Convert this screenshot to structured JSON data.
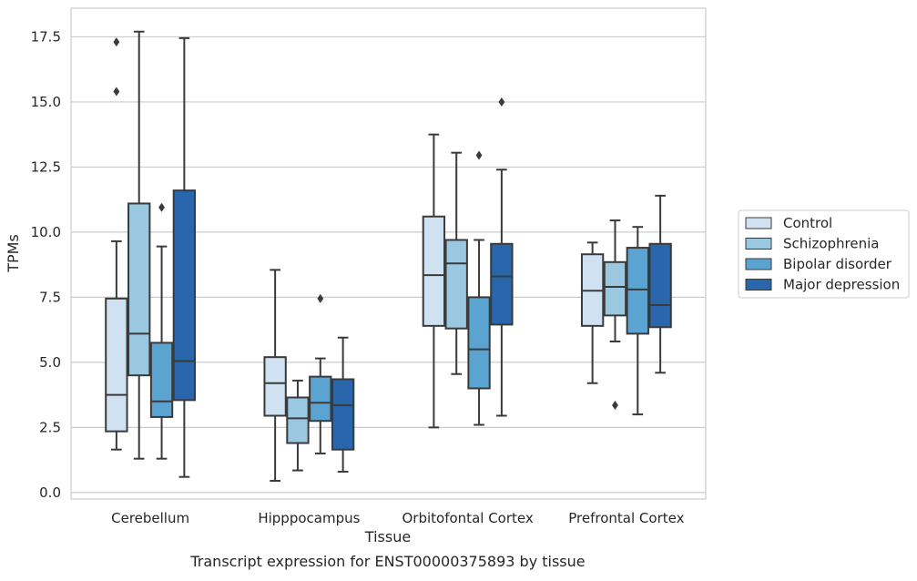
{
  "chart_data": {
    "type": "box",
    "title": "",
    "caption": "Transcript expression for ENST00000375893 by tissue",
    "xlabel": "Tissue",
    "ylabel": "TPMs",
    "ylim": [
      -0.25,
      18.6
    ],
    "yticks": [
      "0.0",
      "2.5",
      "5.0",
      "7.5",
      "10.0",
      "12.5",
      "15.0",
      "17.5"
    ],
    "ytick_values": [
      0,
      2.5,
      5,
      7.5,
      10,
      12.5,
      15,
      17.5
    ],
    "grid": "horizontal",
    "legend_position": "right",
    "categories": [
      "Cerebellum",
      "Hipppocampus",
      "Orbitofontal Cortex",
      "Prefrontal Cortex"
    ],
    "series": [
      {
        "name": "Control",
        "color": "#d0e1f2",
        "boxes": [
          {
            "whislo": 1.65,
            "q1": 2.35,
            "med": 3.75,
            "q3": 7.45,
            "whishi": 9.65,
            "fliers": [
              17.3,
              15.4
            ]
          },
          {
            "whislo": 0.45,
            "q1": 2.95,
            "med": 4.2,
            "q3": 5.2,
            "whishi": 8.55,
            "fliers": []
          },
          {
            "whislo": 2.5,
            "q1": 6.4,
            "med": 8.35,
            "q3": 10.6,
            "whishi": 13.75,
            "fliers": []
          },
          {
            "whislo": 4.2,
            "q1": 6.4,
            "med": 7.75,
            "q3": 9.15,
            "whishi": 9.6,
            "fliers": []
          }
        ]
      },
      {
        "name": "Schizophrenia",
        "color": "#9ac8e0",
        "boxes": [
          {
            "whislo": 1.3,
            "q1": 4.5,
            "med": 6.1,
            "q3": 11.1,
            "whishi": 17.7,
            "fliers": []
          },
          {
            "whislo": 0.85,
            "q1": 1.9,
            "med": 2.85,
            "q3": 3.65,
            "whishi": 4.3,
            "fliers": []
          },
          {
            "whislo": 4.55,
            "q1": 6.3,
            "med": 8.8,
            "q3": 9.7,
            "whishi": 13.05,
            "fliers": []
          },
          {
            "whislo": 5.8,
            "q1": 6.8,
            "med": 7.9,
            "q3": 8.85,
            "whishi": 10.45,
            "fliers": [
              3.35
            ]
          }
        ]
      },
      {
        "name": "Bipolar disorder",
        "color": "#5ba3d0",
        "boxes": [
          {
            "whislo": 1.3,
            "q1": 2.9,
            "med": 3.5,
            "q3": 5.75,
            "whishi": 9.45,
            "fliers": [
              10.95
            ]
          },
          {
            "whislo": 1.5,
            "q1": 2.75,
            "med": 3.45,
            "q3": 4.45,
            "whishi": 5.15,
            "fliers": [
              7.45
            ]
          },
          {
            "whislo": 2.6,
            "q1": 4.0,
            "med": 5.5,
            "q3": 7.5,
            "whishi": 9.7,
            "fliers": [
              12.95
            ]
          },
          {
            "whislo": 3.0,
            "q1": 6.1,
            "med": 7.8,
            "q3": 9.4,
            "whishi": 10.2,
            "fliers": []
          }
        ]
      },
      {
        "name": "Major depression",
        "color": "#2966ac",
        "boxes": [
          {
            "whislo": 0.6,
            "q1": 3.55,
            "med": 5.05,
            "q3": 11.6,
            "whishi": 17.45,
            "fliers": []
          },
          {
            "whislo": 0.8,
            "q1": 1.65,
            "med": 3.35,
            "q3": 4.35,
            "whishi": 5.95,
            "fliers": []
          },
          {
            "whislo": 2.95,
            "q1": 6.45,
            "med": 8.3,
            "q3": 9.55,
            "whishi": 12.4,
            "fliers": [
              15.0
            ]
          },
          {
            "whislo": 4.6,
            "q1": 6.35,
            "med": 7.2,
            "q3": 9.55,
            "whishi": 11.4,
            "fliers": []
          }
        ]
      }
    ]
  }
}
